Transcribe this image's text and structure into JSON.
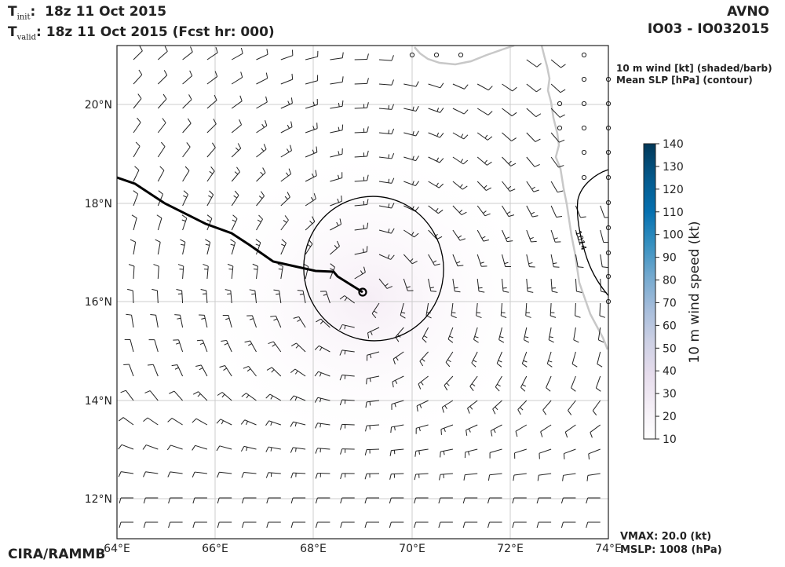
{
  "header": {
    "t_init_label": "init",
    "t_init_value": "18z 11 Oct 2015",
    "t_valid_label": "valid",
    "t_valid_value": "18z 11 Oct 2015 (Fcst hr: 000)",
    "model": "AVNO",
    "storm_id": "IO03 - IO032015"
  },
  "legend": {
    "line1": "10 m wind [kt] (shaded/barb)",
    "line2": "Mean SLP [hPa] (contour)"
  },
  "colorbar": {
    "label": "10 m wind speed (kt)",
    "ticks": [
      "10",
      "20",
      "30",
      "40",
      "50",
      "60",
      "70",
      "80",
      "90",
      "100",
      "110",
      "120",
      "130",
      "140"
    ],
    "colors": [
      "#ffffff",
      "#f4eef6",
      "#e6dcec",
      "#cdd0e4",
      "#a6bddb",
      "#74a9cf",
      "#3690c0",
      "#0570b0",
      "#045a8d",
      "#023858"
    ]
  },
  "map": {
    "x_ticks": [
      "64°E",
      "66°E",
      "68°E",
      "70°E",
      "72°E",
      "74°E"
    ],
    "y_ticks": [
      "20°N",
      "18°N",
      "16°N",
      "14°N",
      "12°N"
    ],
    "contour_labels": [
      "1014"
    ],
    "lon_range": [
      64,
      74
    ],
    "lat_range": [
      11.2,
      21.2
    ]
  },
  "footer": {
    "credit": "CIRA/RAMMB",
    "vmax": "VMAX:  20.0 (kt)",
    "mslp": "MSLP: 1008 (hPa)"
  },
  "colors": {
    "track": "#000000",
    "coast": "#c8c8c8",
    "grid": "#cccccc"
  }
}
